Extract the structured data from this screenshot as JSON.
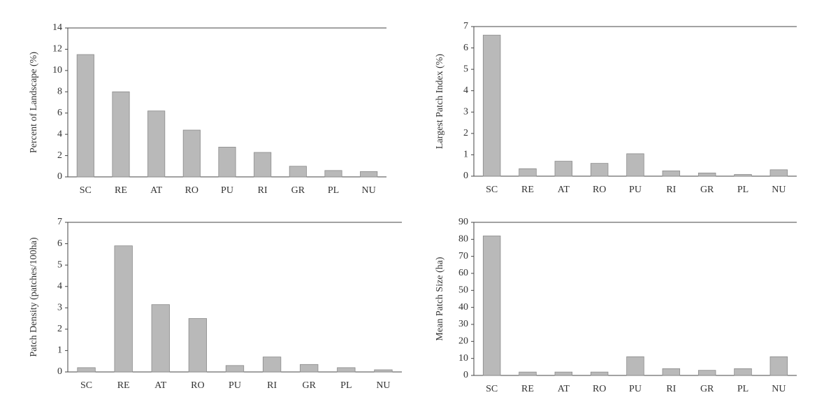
{
  "chart_data": [
    {
      "type": "bar",
      "ylabel": "Percent of Landscape (%)",
      "categories": [
        "SC",
        "RE",
        "AT",
        "RO",
        "PU",
        "RI",
        "GR",
        "PL",
        "NU"
      ],
      "values": [
        11.5,
        8.0,
        6.2,
        4.4,
        2.8,
        2.3,
        1.0,
        0.6,
        0.5
      ],
      "color": "#b9b9b9",
      "ylim": [
        0,
        14
      ],
      "yticks": [
        0,
        2,
        4,
        6,
        8,
        10,
        12,
        14
      ]
    },
    {
      "type": "bar",
      "ylabel": "Largest Patch Index (%)",
      "categories": [
        "SC",
        "RE",
        "AT",
        "RO",
        "PU",
        "RI",
        "GR",
        "PL",
        "NU"
      ],
      "values": [
        6.6,
        0.35,
        0.7,
        0.6,
        1.05,
        0.25,
        0.15,
        0.08,
        0.3
      ],
      "color": "#b9b9b9",
      "ylim": [
        0,
        7
      ],
      "yticks": [
        0,
        1,
        2,
        3,
        4,
        5,
        6,
        7
      ]
    },
    {
      "type": "bar",
      "ylabel": "Patch Density (patches/100ha)",
      "categories": [
        "SC",
        "RE",
        "AT",
        "RO",
        "PU",
        "RI",
        "GR",
        "PL",
        "NU"
      ],
      "values": [
        0.2,
        5.9,
        3.15,
        2.5,
        0.3,
        0.7,
        0.35,
        0.2,
        0.1
      ],
      "color": "#b9b9b9",
      "ylim": [
        0,
        7
      ],
      "yticks": [
        0,
        1,
        2,
        3,
        4,
        5,
        6,
        7
      ]
    },
    {
      "type": "bar",
      "ylabel": "Mean Patch Size (ha)",
      "categories": [
        "SC",
        "RE",
        "AT",
        "RO",
        "PU",
        "RI",
        "GR",
        "PL",
        "NU"
      ],
      "values": [
        82,
        2,
        2,
        2,
        11,
        4,
        3,
        4,
        11
      ],
      "color": "#b9b9b9",
      "ylim": [
        0,
        90
      ],
      "yticks": [
        0,
        10,
        20,
        30,
        40,
        50,
        60,
        70,
        80,
        90
      ]
    }
  ]
}
